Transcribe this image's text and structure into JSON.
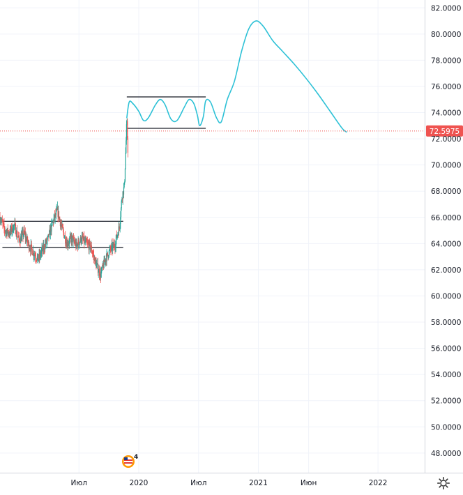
{
  "chart_data": {
    "type": "candlestick+line",
    "y_axis": {
      "ticks": [
        "48.0000",
        "50.0000",
        "52.0000",
        "54.0000",
        "56.0000",
        "58.0000",
        "60.0000",
        "62.0000",
        "64.0000",
        "66.0000",
        "68.0000",
        "70.0000",
        "72.0000",
        "74.0000",
        "76.0000",
        "78.0000",
        "80.0000",
        "82.0000"
      ],
      "range": [
        46.5,
        82.6
      ]
    },
    "x_axis": {
      "ticks": [
        {
          "label": "Июл",
          "t": 0.5
        },
        {
          "label": "2020",
          "t": 1.0
        },
        {
          "label": "Июл",
          "t": 1.5
        },
        {
          "label": "2021",
          "t": 2.0
        },
        {
          "label": "Июн",
          "t": 2.42
        },
        {
          "label": "2022",
          "t": 3.0
        }
      ],
      "range": [
        -0.16,
        3.39
      ]
    },
    "current_price": {
      "label": "72.5975",
      "value": 72.5975
    },
    "price_series": {
      "up_color": "#26a69a",
      "down_color": "#ef5350",
      "waypoints": [
        [
          -0.16,
          66.0
        ],
        [
          -0.12,
          65.0
        ],
        [
          -0.08,
          64.8
        ],
        [
          -0.04,
          65.4
        ],
        [
          0.0,
          64.2
        ],
        [
          0.04,
          64.8
        ],
        [
          0.08,
          63.9
        ],
        [
          0.12,
          63.3
        ],
        [
          0.16,
          62.8
        ],
        [
          0.2,
          63.6
        ],
        [
          0.24,
          64.3
        ],
        [
          0.28,
          65.6
        ],
        [
          0.32,
          66.5
        ],
        [
          0.36,
          65.1
        ],
        [
          0.4,
          64.0
        ],
        [
          0.44,
          64.4
        ],
        [
          0.48,
          63.8
        ],
        [
          0.52,
          64.4
        ],
        [
          0.56,
          64.0
        ],
        [
          0.6,
          63.7
        ],
        [
          0.64,
          62.5
        ],
        [
          0.68,
          61.6
        ],
        [
          0.72,
          62.8
        ],
        [
          0.76,
          63.5
        ],
        [
          0.8,
          63.9
        ],
        [
          0.84,
          65.4
        ],
        [
          0.86,
          67.6
        ],
        [
          0.88,
          68.4
        ],
        [
          0.9,
          73.4
        ],
        [
          0.91,
          71.0
        ]
      ]
    },
    "forecast_line": {
      "color": "#2dc1d6",
      "points": [
        [
          0.9,
          73.6
        ],
        [
          0.92,
          74.8
        ],
        [
          0.95,
          74.7
        ],
        [
          1.0,
          74.1
        ],
        [
          1.04,
          73.4
        ],
        [
          1.08,
          73.6
        ],
        [
          1.14,
          74.6
        ],
        [
          1.18,
          75.0
        ],
        [
          1.22,
          74.6
        ],
        [
          1.27,
          73.5
        ],
        [
          1.32,
          73.4
        ],
        [
          1.38,
          74.4
        ],
        [
          1.42,
          75.0
        ],
        [
          1.46,
          74.7
        ],
        [
          1.49,
          73.8
        ],
        [
          1.51,
          73.0
        ],
        [
          1.54,
          73.7
        ],
        [
          1.56,
          74.9
        ],
        [
          1.6,
          74.8
        ],
        [
          1.65,
          73.6
        ],
        [
          1.69,
          73.3
        ],
        [
          1.74,
          75.0
        ],
        [
          1.8,
          76.4
        ],
        [
          1.86,
          78.7
        ],
        [
          1.92,
          80.4
        ],
        [
          1.98,
          81.0
        ],
        [
          2.04,
          80.6
        ],
        [
          2.12,
          79.5
        ],
        [
          2.2,
          78.7
        ],
        [
          2.3,
          77.7
        ],
        [
          2.4,
          76.6
        ],
        [
          2.5,
          75.4
        ],
        [
          2.6,
          74.1
        ],
        [
          2.7,
          72.8
        ],
        [
          2.74,
          72.5
        ]
      ]
    },
    "levels": [
      {
        "t0": -0.16,
        "t1": 0.87,
        "value": 65.7
      },
      {
        "t0": -0.14,
        "t1": 0.87,
        "value": 63.7
      },
      {
        "t0": 0.9,
        "t1": 1.56,
        "value": 75.2
      },
      {
        "t0": 0.9,
        "t1": 1.56,
        "value": 72.8
      }
    ],
    "badge": {
      "count": "4",
      "icon": "us-flag-icon"
    }
  }
}
